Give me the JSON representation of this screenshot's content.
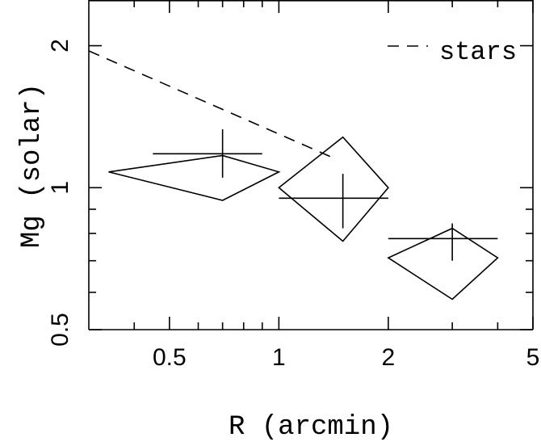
{
  "chart_data": {
    "type": "scatter",
    "xlabel": "R (arcmin)",
    "ylabel": "Mg (solar)",
    "x_scale": "log",
    "y_scale": "log",
    "xlim": [
      0.3,
      5
    ],
    "ylim": [
      0.5,
      2.5
    ],
    "x_ticks": [
      {
        "value": 0.5,
        "label": "0.5"
      },
      {
        "value": 1,
        "label": "1"
      },
      {
        "value": 2,
        "label": "2"
      },
      {
        "value": 5,
        "label": "5"
      }
    ],
    "y_ticks": [
      {
        "value": 0.5,
        "label": "0.5"
      },
      {
        "value": 1,
        "label": "1"
      },
      {
        "value": 2,
        "label": "2"
      }
    ],
    "x_minor_ticks": [
      0.4,
      0.6,
      0.7,
      0.8,
      0.9,
      3,
      4
    ],
    "y_minor_ticks": [
      0.6,
      0.7,
      0.8,
      0.9
    ],
    "legend": {
      "entries": [
        {
          "label": "stars",
          "style": "dashed"
        }
      ],
      "position": "top-right"
    },
    "series": [
      {
        "name": "stars",
        "style": "dashed",
        "points": [
          {
            "x": 0.3,
            "y": 1.95
          },
          {
            "x": 1.4,
            "y": 1.16
          }
        ]
      }
    ],
    "error_points": [
      {
        "x": 0.7,
        "y": 1.18,
        "x_err": [
          0.45,
          0.9
        ],
        "y_err": [
          1.05,
          1.33
        ]
      },
      {
        "x": 1.5,
        "y": 0.95,
        "x_err": [
          1.0,
          2.0
        ],
        "y_err": [
          0.82,
          1.07
        ]
      },
      {
        "x": 3.0,
        "y": 0.78,
        "x_err": [
          2.0,
          4.0
        ],
        "y_err": [
          0.7,
          0.84
        ]
      }
    ],
    "diamonds": [
      [
        {
          "x": 0.34,
          "y": 1.08
        },
        {
          "x": 0.7,
          "y": 1.17
        },
        {
          "x": 1.0,
          "y": 1.08
        },
        {
          "x": 0.7,
          "y": 0.94
        }
      ],
      [
        {
          "x": 1.0,
          "y": 1.0
        },
        {
          "x": 1.5,
          "y": 1.28
        },
        {
          "x": 2.0,
          "y": 1.0
        },
        {
          "x": 1.5,
          "y": 0.77
        }
      ],
      [
        {
          "x": 2.0,
          "y": 0.71
        },
        {
          "x": 3.0,
          "y": 0.82
        },
        {
          "x": 4.0,
          "y": 0.71
        },
        {
          "x": 3.0,
          "y": 0.58
        }
      ]
    ]
  }
}
